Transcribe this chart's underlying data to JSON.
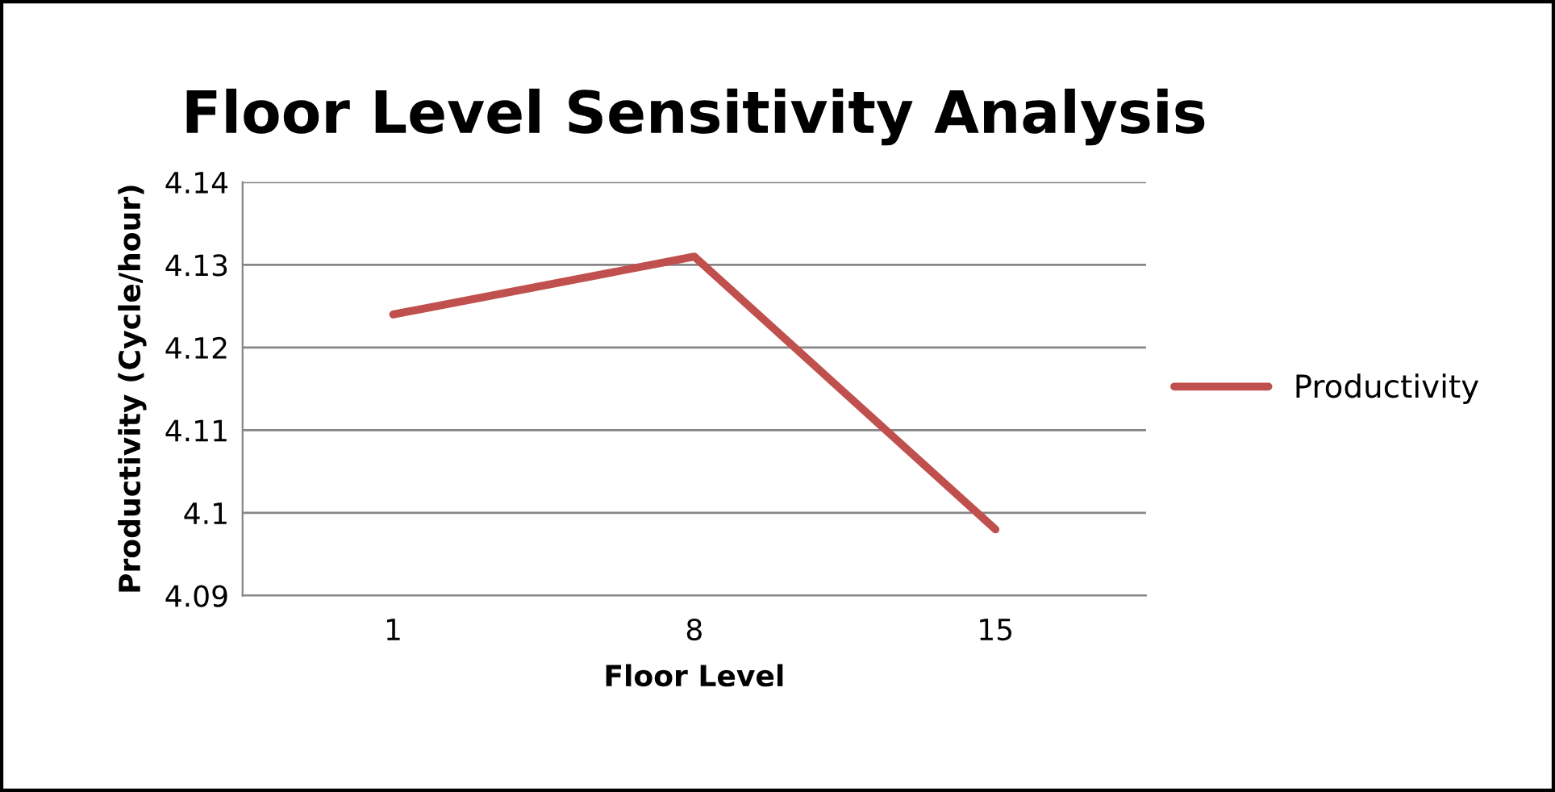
{
  "chart_data": {
    "type": "line",
    "title": "Floor Level Sensitivity Analysis",
    "xlabel": "Floor Level",
    "ylabel": "Productivity (Cycle/hour)",
    "categories": [
      "1",
      "8",
      "15"
    ],
    "series": [
      {
        "name": "Productivity",
        "color": "#c0504d",
        "values": [
          4.124,
          4.131,
          4.098
        ]
      }
    ],
    "ylim": [
      4.09,
      4.14
    ],
    "yticks": [
      4.09,
      4.1,
      4.11,
      4.12,
      4.13,
      4.14
    ],
    "grid": "y",
    "legend": "right",
    "marker": "none",
    "line_style": "solid"
  }
}
